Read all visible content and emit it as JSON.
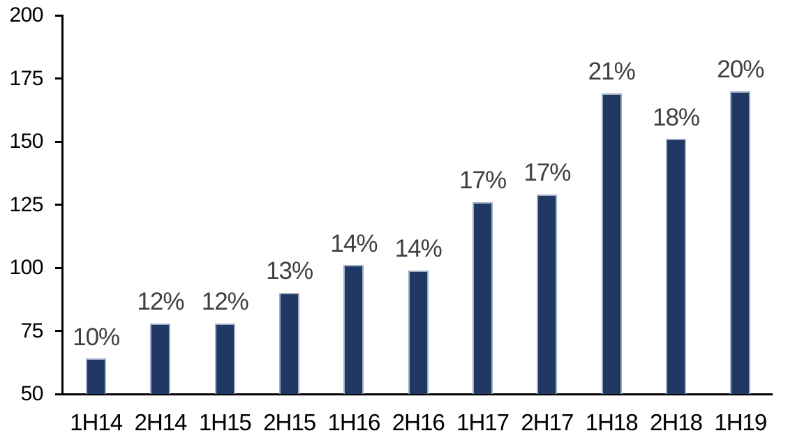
{
  "chart_data": {
    "type": "bar",
    "title": "",
    "xlabel": "",
    "ylabel": "",
    "categories": [
      "1H14",
      "2H14",
      "1H15",
      "2H15",
      "1H16",
      "2H16",
      "1H17",
      "2H17",
      "1H18",
      "2H18",
      "1H19"
    ],
    "values": [
      64,
      78,
      78,
      90,
      101,
      99,
      126,
      129,
      169,
      151,
      170
    ],
    "bar_labels": [
      "10%",
      "12%",
      "12%",
      "13%",
      "14%",
      "14%",
      "17%",
      "17%",
      "21%",
      "18%",
      "20%"
    ],
    "ylim": [
      50,
      200
    ],
    "yticks": [
      50,
      75,
      100,
      125,
      150,
      175,
      200
    ],
    "grid": false,
    "legend": "none",
    "bar_color": "#1F3864",
    "bar_border_color": "#9FAEC6",
    "data_label_color": "#404040",
    "axis_color": "#000000",
    "background_color": "#FFFFFF"
  }
}
